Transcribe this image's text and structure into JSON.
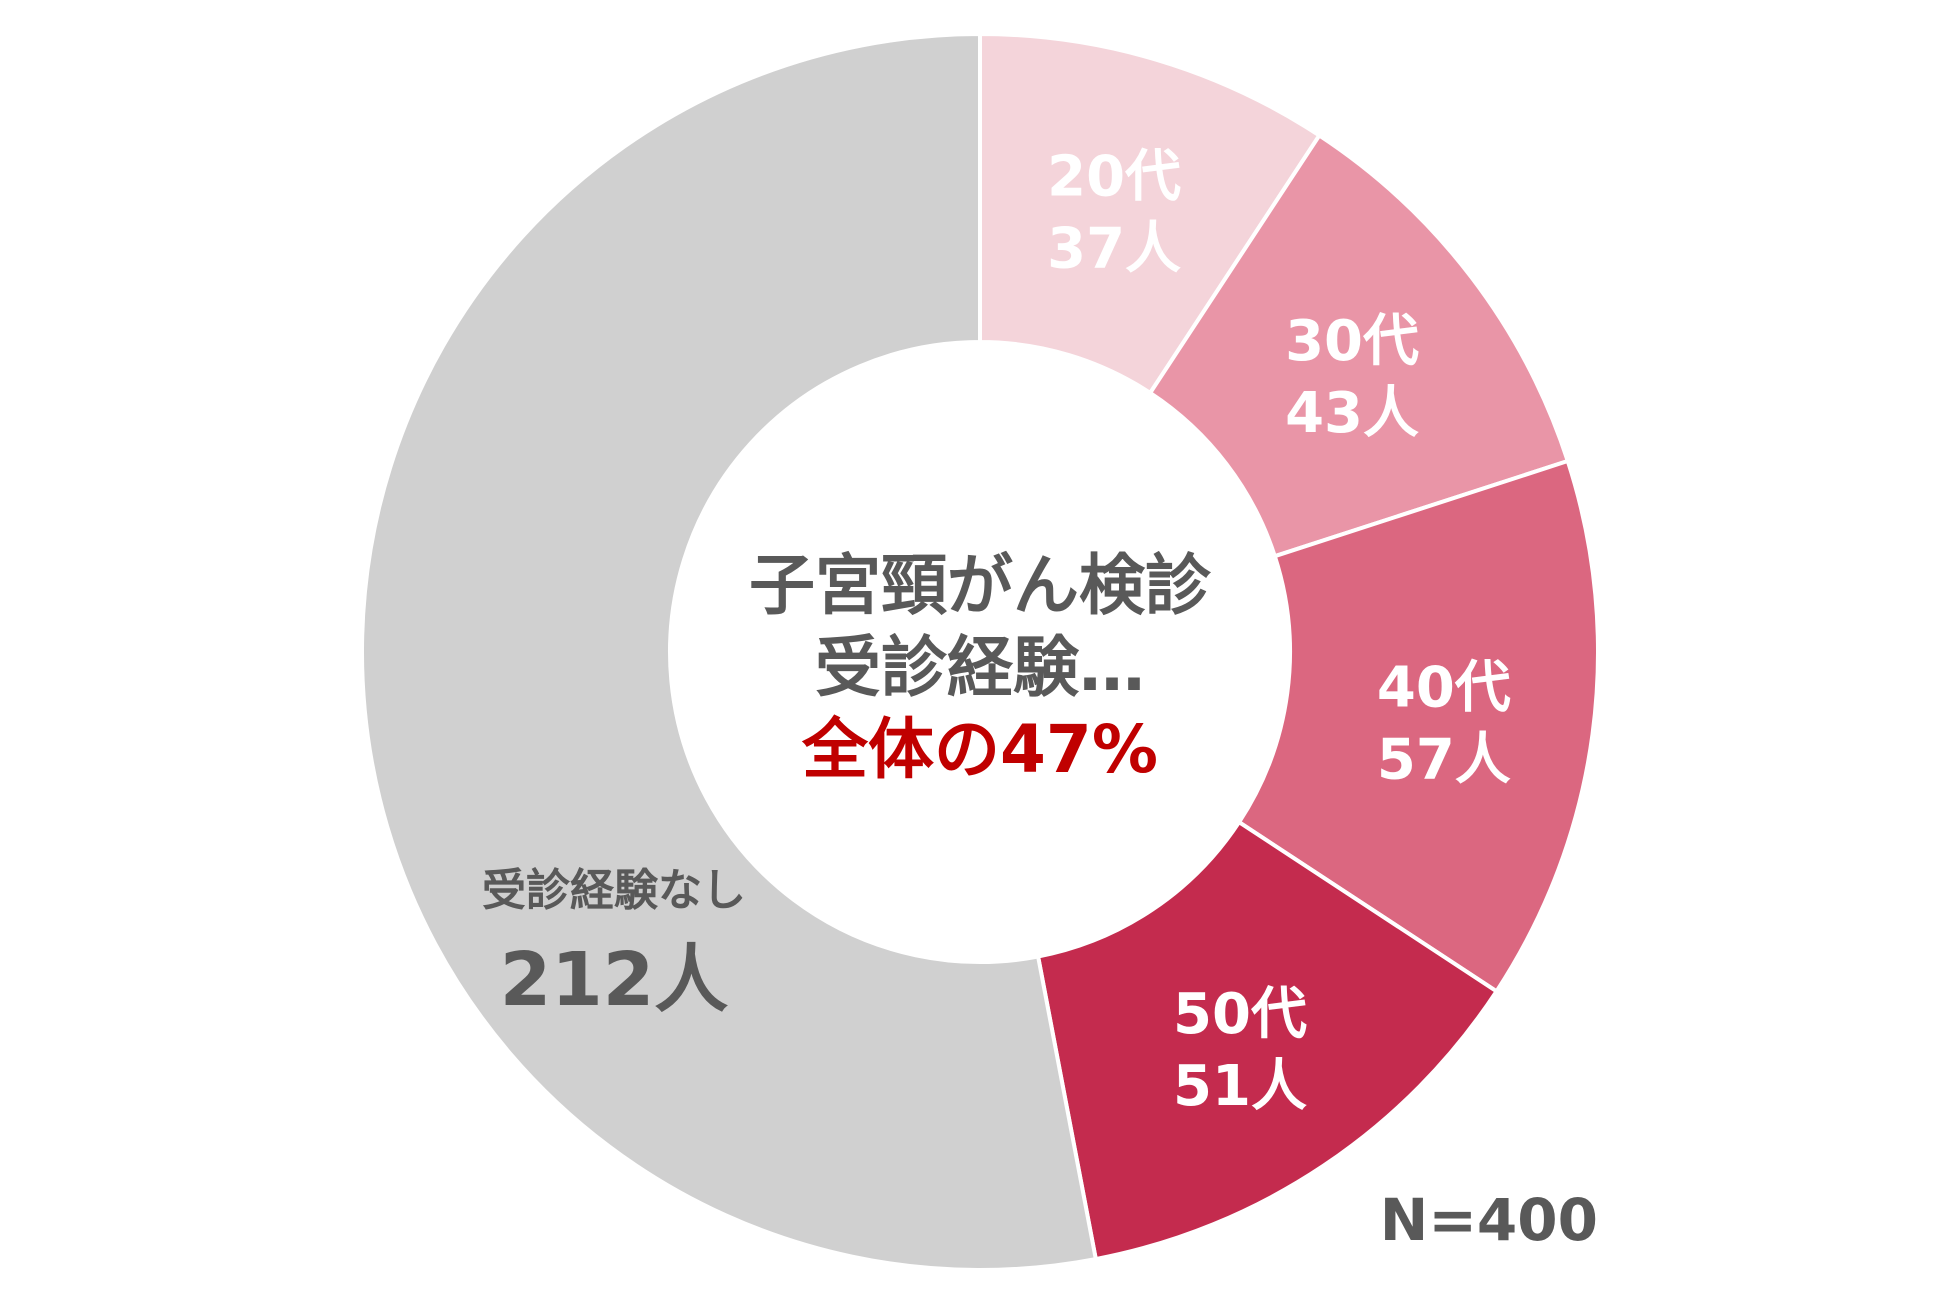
{
  "chart_data": {
    "type": "pie",
    "variant": "donut",
    "total": 400,
    "slices": [
      {
        "label": "20代",
        "count_label": "37人",
        "value": 37,
        "color": "#F4D4DA"
      },
      {
        "label": "30代",
        "count_label": "43人",
        "value": 43,
        "color": "#E995A7"
      },
      {
        "label": "40代",
        "count_label": "57人",
        "value": 57,
        "color": "#DB6780"
      },
      {
        "label": "50代",
        "count_label": "51人",
        "value": 51,
        "color": "#C42B4E"
      },
      {
        "label": "受診経験なし",
        "count_label": "212人",
        "value": 212,
        "color": "#D0D0D0"
      }
    ],
    "center": {
      "line1": "子宮頸がん検診",
      "line2": "受診経験…",
      "highlight": "全体の47%",
      "highlight_color": "#C00000"
    },
    "n_label": "N=400",
    "legend": "none",
    "start_angle": "12 o'clock",
    "direction": "clockwise"
  }
}
